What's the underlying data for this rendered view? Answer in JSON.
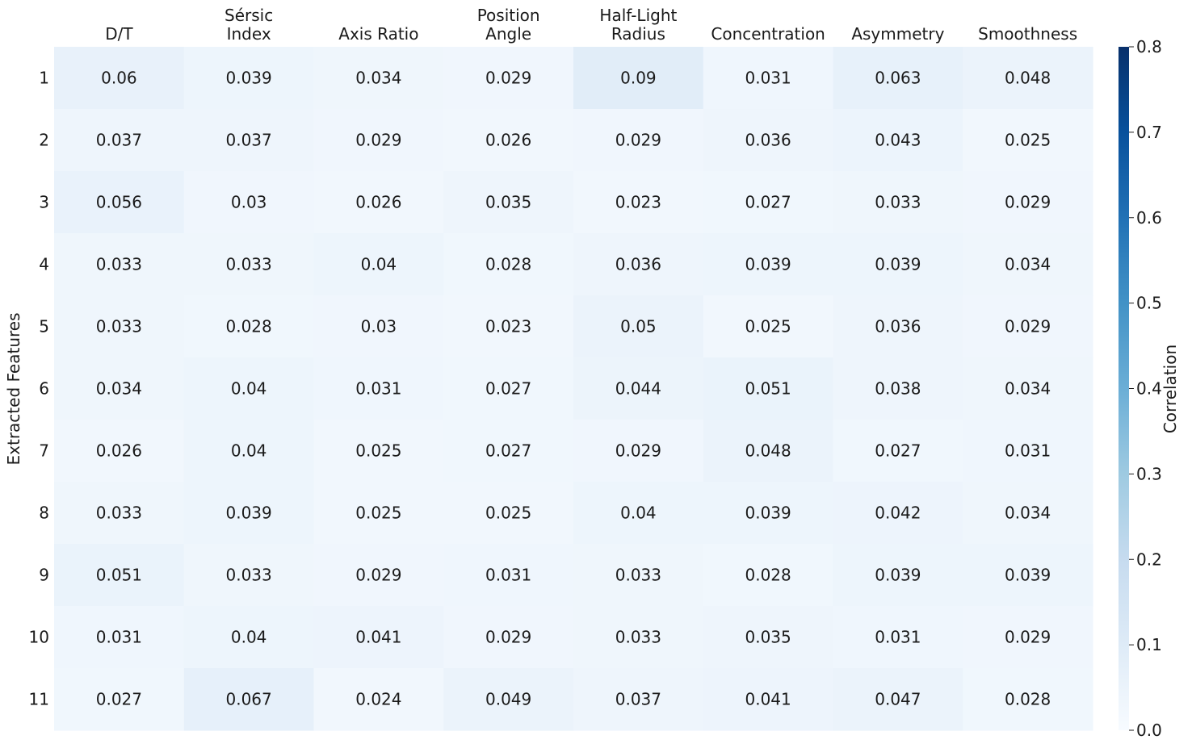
{
  "chart_data": {
    "type": "heatmap",
    "title": "",
    "xlabel": "",
    "ylabel": "Extracted Features",
    "columns": [
      [
        "D/T"
      ],
      [
        "Sérsic",
        "Index"
      ],
      [
        "Axis Ratio"
      ],
      [
        "Position",
        "Angle"
      ],
      [
        "Half-Light",
        "Radius"
      ],
      [
        "Concentration"
      ],
      [
        "Asymmetry"
      ],
      [
        "Smoothness"
      ]
    ],
    "rows": [
      "1",
      "2",
      "3",
      "4",
      "5",
      "6",
      "7",
      "8",
      "9",
      "10",
      "11"
    ],
    "values": [
      [
        0.06,
        0.039,
        0.034,
        0.029,
        0.09,
        0.031,
        0.063,
        0.048
      ],
      [
        0.037,
        0.037,
        0.029,
        0.026,
        0.029,
        0.036,
        0.043,
        0.025
      ],
      [
        0.056,
        0.03,
        0.026,
        0.035,
        0.023,
        0.027,
        0.033,
        0.029
      ],
      [
        0.033,
        0.033,
        0.04,
        0.028,
        0.036,
        0.039,
        0.039,
        0.034
      ],
      [
        0.033,
        0.028,
        0.03,
        0.023,
        0.05,
        0.025,
        0.036,
        0.029
      ],
      [
        0.034,
        0.04,
        0.031,
        0.027,
        0.044,
        0.051,
        0.038,
        0.034
      ],
      [
        0.026,
        0.04,
        0.025,
        0.027,
        0.029,
        0.048,
        0.027,
        0.031
      ],
      [
        0.033,
        0.039,
        0.025,
        0.025,
        0.04,
        0.039,
        0.042,
        0.034
      ],
      [
        0.051,
        0.033,
        0.029,
        0.031,
        0.033,
        0.028,
        0.039,
        0.039
      ],
      [
        0.031,
        0.04,
        0.041,
        0.029,
        0.033,
        0.035,
        0.031,
        0.029
      ],
      [
        0.027,
        0.067,
        0.024,
        0.049,
        0.037,
        0.041,
        0.047,
        0.028
      ]
    ],
    "colorbar": {
      "label": "Correlation",
      "range": [
        0.0,
        0.8
      ],
      "ticks": [
        "0.0",
        "0.1",
        "0.2",
        "0.3",
        "0.4",
        "0.5",
        "0.6",
        "0.7",
        "0.8"
      ],
      "colormap": "Blues",
      "color_low": "#f7fbff",
      "color_high": "#08306b"
    }
  }
}
